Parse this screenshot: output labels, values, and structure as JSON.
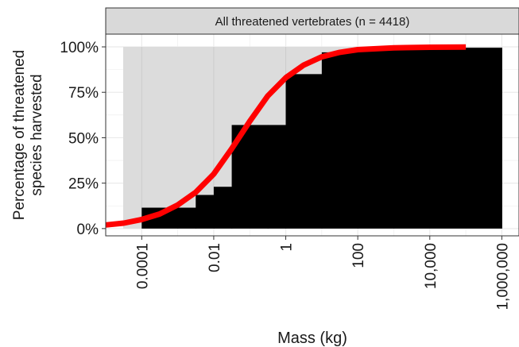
{
  "chart_data": {
    "type": "bar",
    "strip_title": "All threatened vertebrates (n = 4418)",
    "xlabel": "Mass (kg)",
    "ylabel_lines": [
      "Percentage of threatened",
      "species harvested"
    ],
    "x_scale": "log10",
    "x_ticks": [
      {
        "value": 0.0001,
        "label": "0.0001"
      },
      {
        "value": 0.01,
        "label": "0.01"
      },
      {
        "value": 1,
        "label": "1"
      },
      {
        "value": 100,
        "label": "100"
      },
      {
        "value": 10000,
        "label": "10,000"
      },
      {
        "value": 1000000,
        "label": "1,000,000"
      }
    ],
    "y_ticks": [
      {
        "value": 0,
        "label": "0%"
      },
      {
        "value": 25,
        "label": "25%"
      },
      {
        "value": 50,
        "label": "50%"
      },
      {
        "value": 75,
        "label": "75%"
      },
      {
        "value": 100,
        "label": "100%"
      }
    ],
    "xlim": [
      1e-05,
      3000000
    ],
    "ylim": [
      -4,
      107
    ],
    "grid": true,
    "background_bars": {
      "description_color": "#dcdcdc",
      "x_start": 1e-05,
      "x_end": 1000000,
      "value": 100
    },
    "harvested_bars": [
      {
        "x_start": 0.0001,
        "x_end": 0.001,
        "value": 11.5
      },
      {
        "x_start": 0.001,
        "x_end": 0.00316,
        "value": 11.5
      },
      {
        "x_start": 0.00316,
        "x_end": 0.01,
        "value": 18.5
      },
      {
        "x_start": 0.01,
        "x_end": 0.0316,
        "value": 23
      },
      {
        "x_start": 0.0316,
        "x_end": 0.316,
        "value": 57
      },
      {
        "x_start": 0.316,
        "x_end": 1,
        "value": 57
      },
      {
        "x_start": 1,
        "x_end": 10,
        "value": 85
      },
      {
        "x_start": 10,
        "x_end": 100,
        "value": 97
      },
      {
        "x_start": 100,
        "x_end": 1000,
        "value": 99
      },
      {
        "x_start": 1000,
        "x_end": 1000000,
        "value": 99.5
      }
    ],
    "fit_curve": {
      "color": "#ff0000",
      "points": [
        [
          1e-05,
          2
        ],
        [
          3.16e-05,
          3
        ],
        [
          0.0001,
          5
        ],
        [
          0.000316,
          8
        ],
        [
          0.001,
          13
        ],
        [
          0.00316,
          20
        ],
        [
          0.01,
          30
        ],
        [
          0.0316,
          44
        ],
        [
          0.1,
          59
        ],
        [
          0.316,
          73
        ],
        [
          1,
          83
        ],
        [
          3.16,
          90
        ],
        [
          10,
          94.5
        ],
        [
          31.6,
          97
        ],
        [
          100,
          98.5
        ],
        [
          1000,
          99.5
        ],
        [
          10000,
          99.8
        ],
        [
          100000,
          99.9
        ],
        [
          1000000,
          99.95
        ]
      ]
    },
    "colors": {
      "bar": "#000000",
      "background_bar": "#dcdcdc",
      "panel": "#ffffff",
      "grid": "#ebebeb",
      "strip": "#d9d9d9",
      "curve": "#ff0000"
    }
  }
}
